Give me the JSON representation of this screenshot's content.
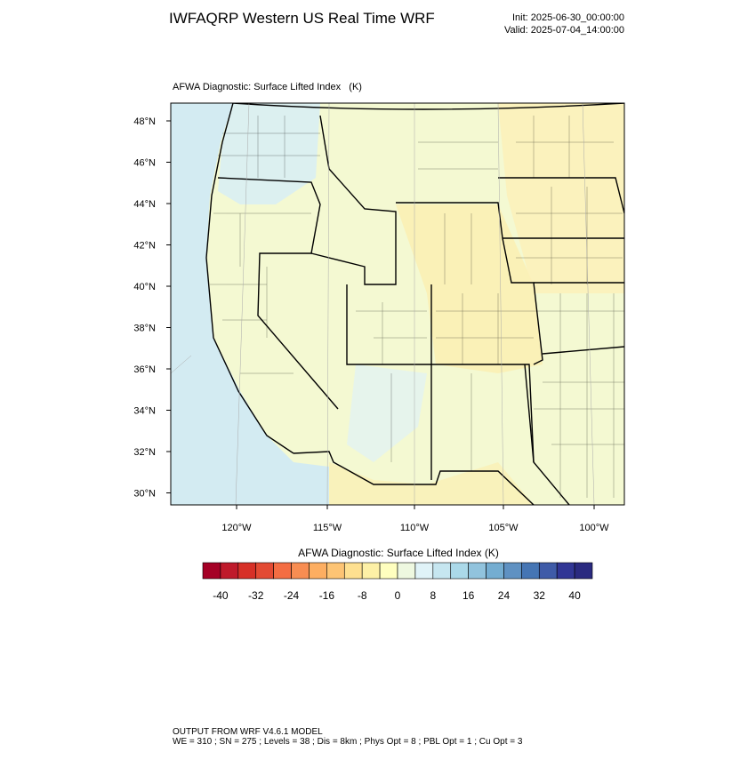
{
  "header": {
    "title": "IWFAQRP Western US Real Time WRF",
    "init": "Init: 2025-06-30_00:00:00",
    "valid": "Valid: 2025-07-04_14:00:00"
  },
  "map": {
    "title": "AFWA Diagnostic: Surface Lifted Index   (K)",
    "lat_labels": [
      "48°N",
      "46°N",
      "44°N",
      "42°N",
      "40°N",
      "38°N",
      "36°N",
      "34°N",
      "32°N",
      "30°N"
    ],
    "lon_labels": [
      "120°W",
      "115°W",
      "110°W",
      "105°W",
      "100°W"
    ]
  },
  "colorbar": {
    "title": "AFWA Diagnostic: Surface Lifted Index  (K)",
    "labels": [
      "-40",
      "-32",
      "-24",
      "-16",
      "-8",
      "0",
      "8",
      "16",
      "24",
      "32",
      "40"
    ],
    "colors": [
      "#a50026",
      "#bf1a2b",
      "#d73027",
      "#e34a33",
      "#f46d43",
      "#f88d52",
      "#fdae61",
      "#fdc474",
      "#fee090",
      "#fdf0a6",
      "#ffffbf",
      "#eef8e0",
      "#e0f3f8",
      "#c6e6f0",
      "#abd9e9",
      "#91c3dd",
      "#74add1",
      "#5f91c2",
      "#4575b4",
      "#3f5ba8",
      "#313695",
      "#2a2a80"
    ]
  },
  "footer": {
    "line1": "OUTPUT FROM WRF V4.6.1 MODEL",
    "line2": "WE = 310 ; SN = 275 ; Levels = 38 ; Dis = 8km ; Phys Opt = 8 ; PBL Opt = 1 ; Cu Opt = 3"
  }
}
